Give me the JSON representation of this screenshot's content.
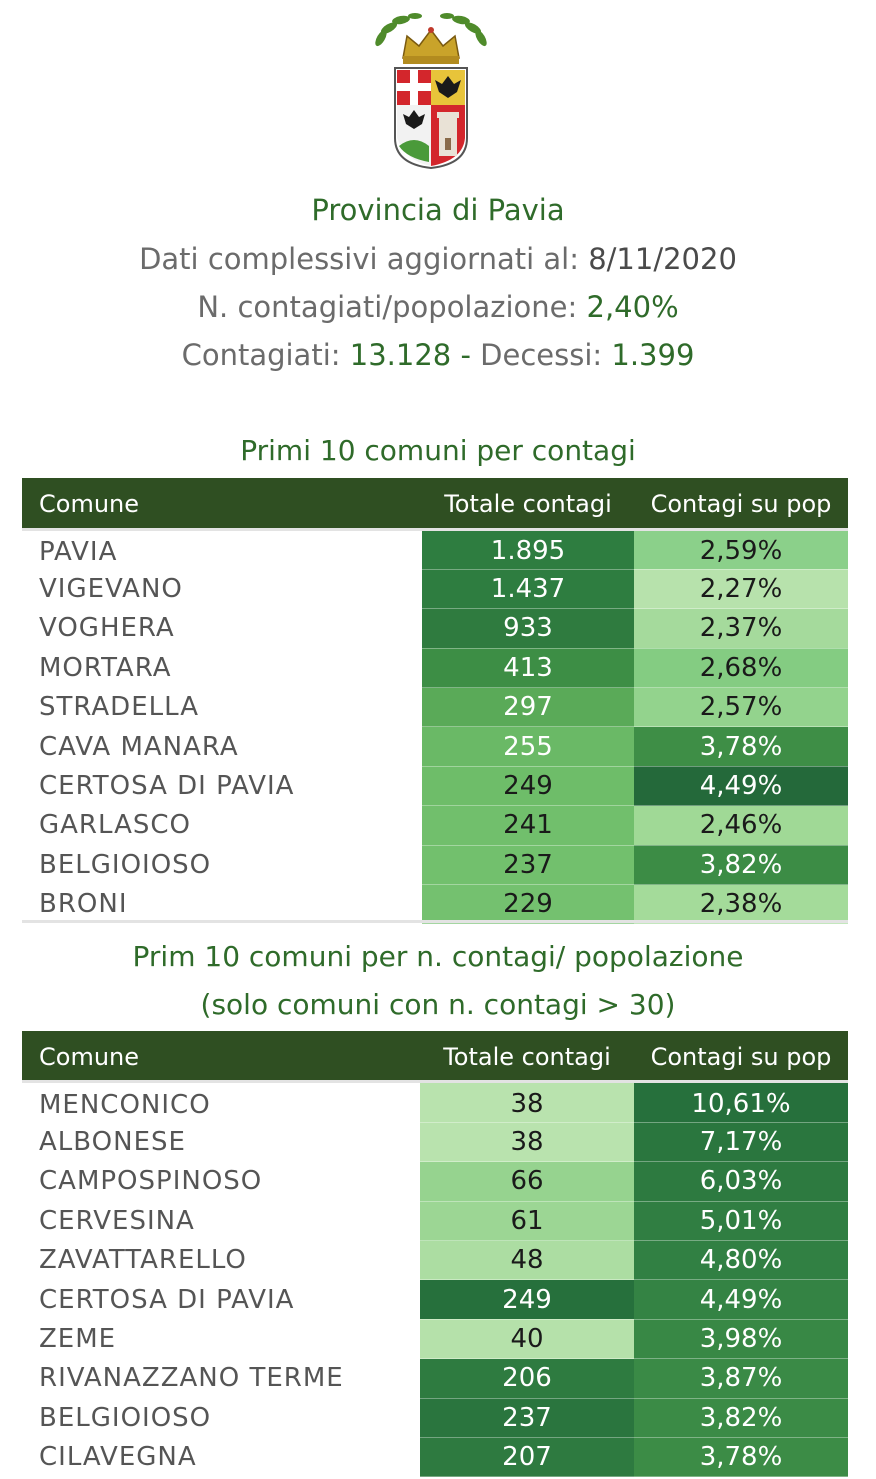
{
  "header": {
    "title": "Provincia di Pavia",
    "updated_label": "Dati complessivi aggiornati al:",
    "updated_value": "8/11/2020",
    "ratio_label": "N. contagiati/popolazione:",
    "ratio_value": "2,40%",
    "cases_label": "Contagiati:",
    "cases_value": "13.128",
    "sep": "-",
    "deaths_label": "Decessi:",
    "deaths_value": "1.399"
  },
  "table1": {
    "title": "Primi 10 comuni per contagi",
    "columns": [
      "Comune",
      "Totale contagi",
      "Contagi su pop"
    ],
    "rows": [
      {
        "comune": "PAVIA",
        "totale": "1.895",
        "pop": "2,59%",
        "tbg": "#2e7d40",
        "tfg": "#ffffff",
        "pbg": "#8bd08a",
        "pfg": "#1a1a1a"
      },
      {
        "comune": "VIGEVANO",
        "totale": "1.437",
        "pop": "2,27%",
        "tbg": "#2e7d40",
        "tfg": "#ffffff",
        "pbg": "#b7e2ac",
        "pfg": "#1a1a1a"
      },
      {
        "comune": "VOGHERA",
        "totale": "933",
        "pop": "2,37%",
        "tbg": "#2f7b3f",
        "tfg": "#ffffff",
        "pbg": "#a5da9c",
        "pfg": "#1a1a1a"
      },
      {
        "comune": "MORTARA",
        "totale": "413",
        "pop": "2,68%",
        "tbg": "#3d8e45",
        "tfg": "#ffffff",
        "pbg": "#84cc82",
        "pfg": "#1a1a1a"
      },
      {
        "comune": "STRADELLA",
        "totale": "297",
        "pop": "2,57%",
        "tbg": "#5aaa58",
        "tfg": "#ffffff",
        "pbg": "#93d38d",
        "pfg": "#1a1a1a"
      },
      {
        "comune": "CAVA MANARA",
        "totale": "255",
        "pop": "3,78%",
        "tbg": "#6ab966",
        "tfg": "#ffffff",
        "pbg": "#3e8e46",
        "pfg": "#ffffff"
      },
      {
        "comune": "CERTOSA DI PAVIA",
        "totale": "249",
        "pop": "4,49%",
        "tbg": "#6ebd69",
        "tfg": "#1a1a1a",
        "pbg": "#24693a",
        "pfg": "#ffffff"
      },
      {
        "comune": "GARLASCO",
        "totale": "241",
        "pop": "2,46%",
        "tbg": "#71bf6c",
        "tfg": "#1a1a1a",
        "pbg": "#a0d996",
        "pfg": "#1a1a1a"
      },
      {
        "comune": "BELGIOIOSO",
        "totale": "237",
        "pop": "3,82%",
        "tbg": "#72c06d",
        "tfg": "#1a1a1a",
        "pbg": "#3c8c45",
        "pfg": "#ffffff"
      },
      {
        "comune": "BRONI",
        "totale": "229",
        "pop": "2,38%",
        "tbg": "#74c16f",
        "tfg": "#1a1a1a",
        "pbg": "#a4db9a",
        "pfg": "#1a1a1a"
      }
    ]
  },
  "table2": {
    "title_line1": "Prim 10 comuni per n. contagi/ popolazione",
    "title_line2": "(solo comuni con n. contagi > 30)",
    "columns": [
      "Comune",
      "Totale contagi",
      "Contagi su pop"
    ],
    "rows": [
      {
        "comune": "MENCONICO",
        "totale": "38",
        "pop": "10,61%",
        "tbg": "#b9e3ae",
        "tfg": "#1a1a1a",
        "pbg": "#26703c",
        "pfg": "#ffffff"
      },
      {
        "comune": "ALBONESE",
        "totale": "38",
        "pop": "7,17%",
        "tbg": "#b9e3ae",
        "tfg": "#1a1a1a",
        "pbg": "#2a763e",
        "pfg": "#ffffff"
      },
      {
        "comune": "CAMPOSPINOSO",
        "totale": "66",
        "pop": "6,03%",
        "tbg": "#96d38f",
        "tfg": "#1a1a1a",
        "pbg": "#2d7a40",
        "pfg": "#ffffff"
      },
      {
        "comune": "CERVESINA",
        "totale": "61",
        "pop": "5,01%",
        "tbg": "#9cd694",
        "tfg": "#1a1a1a",
        "pbg": "#307e42",
        "pfg": "#ffffff"
      },
      {
        "comune": "ZAVATTARELLO",
        "totale": "48",
        "pop": "4,80%",
        "tbg": "#acdda2",
        "tfg": "#1a1a1a",
        "pbg": "#318043",
        "pfg": "#ffffff"
      },
      {
        "comune": "CERTOSA DI PAVIA",
        "totale": "249",
        "pop": "4,49%",
        "tbg": "#26703c",
        "tfg": "#ffffff",
        "pbg": "#348344",
        "pfg": "#ffffff"
      },
      {
        "comune": "ZEME",
        "totale": "40",
        "pop": "3,98%",
        "tbg": "#b5e1aa",
        "tfg": "#1a1a1a",
        "pbg": "#388845",
        "pfg": "#ffffff"
      },
      {
        "comune": "RIVANAZZANO TERME",
        "totale": "206",
        "pop": "3,87%",
        "tbg": "#2e7b40",
        "tfg": "#ffffff",
        "pbg": "#3a8a46",
        "pfg": "#ffffff"
      },
      {
        "comune": "BELGIOIOSO",
        "totale": "237",
        "pop": "3,82%",
        "tbg": "#2a753e",
        "tfg": "#ffffff",
        "pbg": "#3b8b46",
        "pfg": "#ffffff"
      },
      {
        "comune": "CILAVEGNA",
        "totale": "207",
        "pop": "3,78%",
        "tbg": "#2e7a40",
        "tfg": "#ffffff",
        "pbg": "#3c8c46",
        "pfg": "#ffffff"
      }
    ]
  }
}
